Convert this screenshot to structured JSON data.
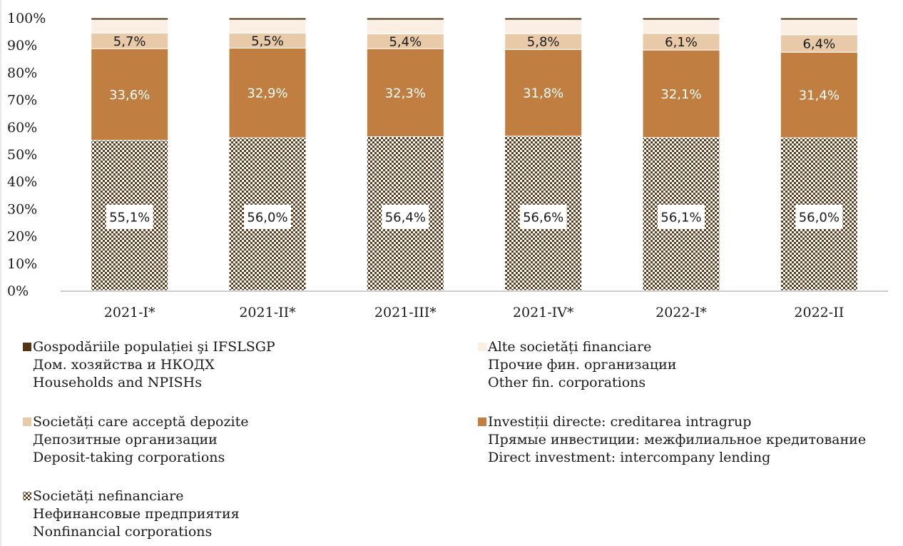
{
  "chart_data": {
    "type": "bar",
    "stacked": true,
    "percent_axis": true,
    "ylim": [
      0,
      100
    ],
    "yticks": [
      "0%",
      "10%",
      "20%",
      "30%",
      "40%",
      "50%",
      "60%",
      "70%",
      "80%",
      "90%",
      "100%"
    ],
    "categories": [
      "2021-I*",
      "2021-II*",
      "2021-III*",
      "2021-IV*",
      "2022-I*",
      "2022-II"
    ],
    "series": [
      {
        "key": "nonfinancial",
        "name_lines": [
          "Societăți nefinanciare",
          "Нефинансовые предприятия",
          "Nonfinancial corporations"
        ],
        "values": [
          55.1,
          56.0,
          56.4,
          56.6,
          56.1,
          56.0
        ],
        "labels": [
          "55,1%",
          "56,0%",
          "56,4%",
          "56,6%",
          "56,1%",
          "56,0%"
        ],
        "color": "#5c3a1a",
        "pattern": "checker"
      },
      {
        "key": "direct_investment",
        "name_lines": [
          "Investiții directe: creditarea intragrup",
          "Прямые инвестиции: межфилиальное кредитование",
          "Direct investment: intercompany lending"
        ],
        "values": [
          33.6,
          32.9,
          32.3,
          31.8,
          32.1,
          31.4
        ],
        "labels": [
          "33,6%",
          "32,9%",
          "32,3%",
          "31,8%",
          "32,1%",
          "31,4%"
        ],
        "color": "#c07f41"
      },
      {
        "key": "deposit_taking",
        "name_lines": [
          "Societăți care acceptă depozite",
          "Депозитные организации",
          "Deposit-taking corporations"
        ],
        "values": [
          5.7,
          5.5,
          5.4,
          5.8,
          6.1,
          6.4
        ],
        "labels": [
          "5,7%",
          "5,5%",
          "5,4%",
          "5,8%",
          "6,1%",
          "6,4%"
        ],
        "color": "#e8c9a8"
      },
      {
        "key": "other_financial",
        "name_lines": [
          "Alte societăți financiare",
          "Прочие фин. организации",
          "Other fin. corporations"
        ],
        "values": [
          4.8,
          4.8,
          5.1,
          5.0,
          4.9,
          5.4
        ],
        "labels": [],
        "color": "#fbeee3"
      },
      {
        "key": "households",
        "name_lines": [
          "Gospodăriile populației şi IFSLSGP",
          "Дом. хозяйства и НКОДХ",
          "Households and NPISHs"
        ],
        "values": [
          0.8,
          0.8,
          0.8,
          0.8,
          0.8,
          0.8
        ],
        "labels": [],
        "color": "#553315"
      }
    ],
    "legend_order": [
      "households",
      "other_financial",
      "deposit_taking",
      "direct_investment",
      "nonfinancial"
    ],
    "legend_placement": "bottom",
    "grid": false
  }
}
